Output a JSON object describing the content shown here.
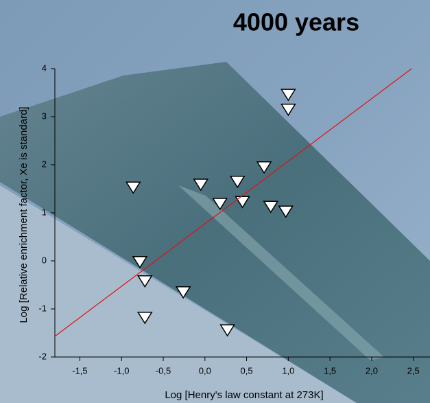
{
  "chart_data": {
    "type": "scatter",
    "title": "4000 years",
    "xlabel": "Log [Henry's law constant at 273K]",
    "ylabel": "Log [Relative enrichment factor, Xe is standard]",
    "xlim": [
      -1.8,
      2.7
    ],
    "ylim": [
      -2,
      4
    ],
    "xticks": [
      {
        "value": -1.5,
        "label": "-1,5"
      },
      {
        "value": -1.0,
        "label": "-1,0"
      },
      {
        "value": -0.5,
        "label": "-0,5"
      },
      {
        "value": 0,
        "label": "0,0"
      },
      {
        "value": 0.5,
        "label": "0,5"
      },
      {
        "value": 1.0,
        "label": "1,0"
      },
      {
        "value": 1.5,
        "label": "1,5"
      },
      {
        "value": 2.0,
        "label": "2,0"
      },
      {
        "value": 2.5,
        "label": "2,5"
      }
    ],
    "yticks": [
      -2,
      -1,
      0,
      1,
      2,
      3,
      4
    ],
    "series": [
      {
        "mode": "markers",
        "marker": "triangle-down",
        "color": "#ffffff",
        "x": [
          -0.86,
          1.0,
          1.0,
          0.71,
          -0.05,
          0.39,
          0.18,
          0.45,
          0.79,
          0.97,
          -0.78,
          -0.72,
          -0.26,
          -0.72,
          0.27
        ],
        "values": [
          1.54,
          3.47,
          3.16,
          1.96,
          1.6,
          1.66,
          1.2,
          1.24,
          1.14,
          1.04,
          -0.01,
          -0.41,
          -0.64,
          -1.17,
          -1.43
        ]
      },
      {
        "mode": "line",
        "color": "#e01010",
        "x": [
          -1.8,
          2.48
        ],
        "values": [
          -1.57,
          4.0
        ]
      }
    ]
  }
}
